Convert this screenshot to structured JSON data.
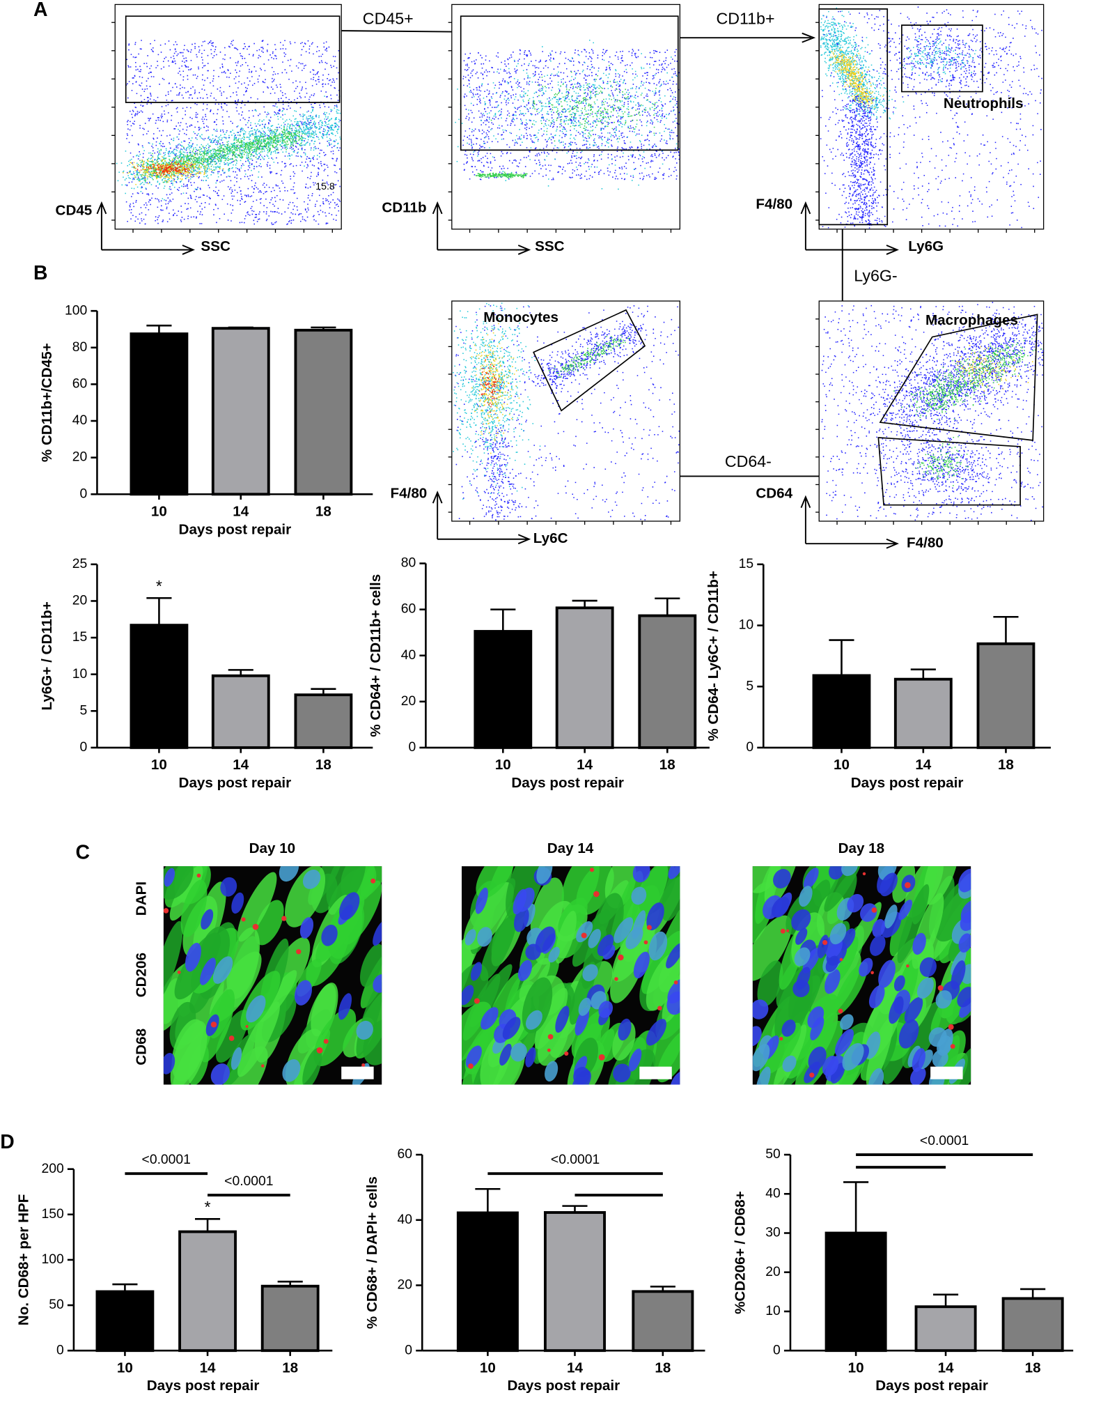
{
  "panel_labels": [
    "A",
    "B",
    "C",
    "D"
  ],
  "flow": {
    "gates": [
      "CD45+",
      "CD11b+",
      "Ly6G-",
      "CD64-"
    ],
    "plots": [
      {
        "y": "CD45",
        "x": "SSC"
      },
      {
        "y": "CD11b",
        "x": "SSC"
      },
      {
        "y": "F4/80",
        "x": "Ly6G",
        "gate": "Neutrophils"
      },
      {
        "y": "F4/80",
        "x": "Ly6C",
        "gate": "Monocytes"
      },
      {
        "y": "CD64",
        "x": "F4/80",
        "gate": "Macrophages"
      }
    ],
    "gate_value": 15.8
  },
  "microscopy": {
    "titles": [
      "Day 10",
      "Day 14",
      "Day 18"
    ],
    "stains": [
      "DAPI",
      "CD206",
      "CD68"
    ]
  },
  "chart_data": [
    {
      "type": "bar",
      "y_label": "% CD11b+/CD45+",
      "x_label": "Days post repair",
      "categories": [
        "10",
        "14",
        "18"
      ],
      "values": [
        87.5,
        90.5,
        89.5
      ],
      "errors": [
        4.5,
        0.5,
        1.5
      ],
      "colors": [
        "#000000",
        "#a5a5a9",
        "#7f7f7f"
      ],
      "ylim": [
        0,
        100
      ],
      "yticks": [
        0,
        20,
        40,
        60,
        80,
        100
      ]
    },
    {
      "type": "bar",
      "y_label": "Ly6G+ / CD11b+",
      "x_label": "Days post repair",
      "categories": [
        "10",
        "14",
        "18"
      ],
      "values": [
        16.7,
        9.8,
        7.2
      ],
      "errors": [
        3.7,
        0.8,
        0.8
      ],
      "colors": [
        "#000000",
        "#a5a5a9",
        "#7f7f7f"
      ],
      "ylim": [
        0,
        25
      ],
      "yticks": [
        0,
        5,
        10,
        15,
        20,
        25
      ],
      "annotations": [
        {
          "text": "*",
          "x": "10"
        }
      ]
    },
    {
      "type": "bar",
      "y_label": "% CD64+ / CD11b+ cells",
      "x_label": "Days post repair",
      "categories": [
        "10",
        "14",
        "18"
      ],
      "values": [
        50.5,
        60.7,
        57.3
      ],
      "errors": [
        9.5,
        3.1,
        7.5
      ],
      "colors": [
        "#000000",
        "#a5a5a9",
        "#7f7f7f"
      ],
      "ylim": [
        0,
        80
      ],
      "yticks": [
        0,
        20,
        40,
        60,
        80
      ]
    },
    {
      "type": "bar",
      "y_label": "% CD64- Ly6C+ / CD11b+",
      "x_label": "Days post repair",
      "categories": [
        "10",
        "14",
        "18"
      ],
      "values": [
        5.9,
        5.6,
        8.5
      ],
      "errors": [
        2.9,
        0.8,
        2.2
      ],
      "colors": [
        "#000000",
        "#a5a5a9",
        "#7f7f7f"
      ],
      "ylim": [
        0,
        15
      ],
      "yticks": [
        0,
        5,
        10,
        15
      ]
    },
    {
      "type": "bar",
      "y_label": "No. CD68+ per HPF",
      "x_label": "Days post repair",
      "categories": [
        "10",
        "14",
        "18"
      ],
      "values": [
        65,
        131,
        71
      ],
      "errors": [
        8,
        14,
        5
      ],
      "colors": [
        "#000000",
        "#a5a5a9",
        "#7f7f7f"
      ],
      "ylim": [
        0,
        200
      ],
      "yticks": [
        0,
        50,
        100,
        150,
        200
      ],
      "annotations": [
        {
          "text": "*",
          "x": "14"
        }
      ],
      "significance": [
        {
          "from": "10",
          "to": "14",
          "label": "<0.0001"
        },
        {
          "from": "14",
          "to": "18",
          "label": "<0.0001"
        }
      ]
    },
    {
      "type": "bar",
      "y_label": "% CD68+ / DAPI+ cells",
      "x_label": "Days post repair",
      "categories": [
        "10",
        "14",
        "18"
      ],
      "values": [
        42.2,
        42.3,
        18.1
      ],
      "errors": [
        7.3,
        2,
        1.5
      ],
      "colors": [
        "#000000",
        "#a5a5a9",
        "#7f7f7f"
      ],
      "ylim": [
        0,
        60
      ],
      "yticks": [
        0,
        20,
        40,
        60
      ],
      "significance": [
        {
          "from": "10",
          "to": "18",
          "label": "<0.0001"
        },
        {
          "from": "14",
          "to": "18"
        }
      ]
    },
    {
      "type": "bar",
      "y_label": "%CD206+ / CD68+",
      "x_label": "Days post repair",
      "categories": [
        "10",
        "14",
        "18"
      ],
      "values": [
        30,
        11.2,
        13.3
      ],
      "errors": [
        13,
        3.1,
        2.4
      ],
      "colors": [
        "#000000",
        "#a5a5a9",
        "#7f7f7f"
      ],
      "ylim": [
        0,
        50
      ],
      "yticks": [
        0,
        10,
        20,
        30,
        40,
        50
      ],
      "significance": [
        {
          "from": "10",
          "to": "18",
          "label": "<0.0001"
        },
        {
          "from": "10",
          "to": "14"
        }
      ]
    }
  ]
}
